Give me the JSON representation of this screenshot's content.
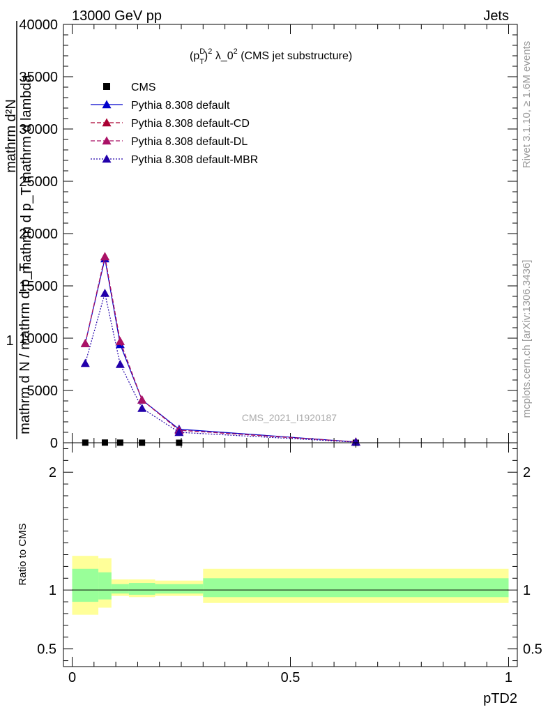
{
  "header": {
    "left": "13000 GeV pp",
    "right": "Jets"
  },
  "side_labels": {
    "rivet": "Rivet 3.1.10, ≥ 1.6M events",
    "mcplots": "mcplots.cern.ch [arXiv:1306.3436]"
  },
  "chart_data": [
    {
      "type": "line",
      "title": "(p_T^D)^2 λ_0^2 (CMS jet substructure)",
      "title_parts": {
        "open": "(p",
        "sup": "D",
        "sub": "T",
        "close": ")",
        "sup2": "2",
        "rest": " λ_0",
        "rest_sup": "2",
        "tail": " (CMS jet substructure)"
      },
      "watermark": "CMS_2021_I1920187",
      "ylabel_top": "mathrm d²N",
      "ylabel_mid": "mathrm d p_T mathrm d lambda",
      "ylabel_left": "1",
      "ylabel_bottom": "mathrm d N / mathrm d p_T",
      "ylim": [
        0,
        40000
      ],
      "xlim": [
        -0.02,
        1.02
      ],
      "yticks": [
        0,
        5000,
        10000,
        15000,
        20000,
        25000,
        30000,
        35000,
        40000
      ],
      "ytick_labels": [
        "0",
        "5000",
        "10000",
        "15000",
        "20000",
        "25000",
        "30000",
        "35000",
        "40000"
      ],
      "legend_position": "top-left",
      "series": [
        {
          "name": "CMS",
          "style": "marker-square",
          "color": "#000000",
          "x": [
            0.03,
            0.075,
            0.11,
            0.16,
            0.245,
            0.65
          ],
          "y": [
            12,
            18,
            10,
            5,
            1.5,
            0.05
          ]
        },
        {
          "name": "Pythia 8.308 default",
          "style": "solid",
          "color": "#0000cc",
          "x": [
            0.03,
            0.075,
            0.11,
            0.16,
            0.245,
            0.65
          ],
          "y": [
            9500,
            17600,
            9400,
            4100,
            1300,
            80
          ]
        },
        {
          "name": "Pythia 8.308 default-CD",
          "style": "dashed",
          "color": "#aa0033",
          "x": [
            0.03,
            0.075,
            0.11,
            0.16,
            0.245,
            0.65
          ],
          "y": [
            9500,
            17800,
            9700,
            4100,
            1200,
            80
          ]
        },
        {
          "name": "Pythia 8.308 default-DL",
          "style": "dashed",
          "color": "#aa1166",
          "x": [
            0.03,
            0.075,
            0.11,
            0.16,
            0.245,
            0.65
          ],
          "y": [
            9500,
            17800,
            9700,
            4100,
            1200,
            80
          ]
        },
        {
          "name": "Pythia 8.308 default-MBR",
          "style": "dotted",
          "color": "#2200aa",
          "x": [
            0.03,
            0.075,
            0.11,
            0.16,
            0.245,
            0.65
          ],
          "y": [
            7600,
            14300,
            7500,
            3300,
            1000,
            60
          ]
        }
      ]
    },
    {
      "type": "area",
      "ylabel": "Ratio to CMS",
      "xlabel": "pTD2",
      "ylim": [
        0.35,
        2.25
      ],
      "xlim": [
        -0.02,
        1.02
      ],
      "yticks": [
        0.5,
        1,
        2
      ],
      "ytick_labels": [
        "0.5",
        "1",
        "2"
      ],
      "xticks": [
        0,
        0.5,
        1
      ],
      "xtick_labels": [
        "0",
        "0.5",
        "1"
      ],
      "bands": {
        "bin_edges": [
          0.0,
          0.06,
          0.09,
          0.13,
          0.19,
          0.3,
          1.0
        ],
        "yellow_low": [
          0.79,
          0.85,
          0.95,
          0.94,
          0.95,
          0.89
        ],
        "yellow_high": [
          1.29,
          1.27,
          1.09,
          1.09,
          1.08,
          1.18
        ],
        "green_low": [
          0.9,
          0.92,
          0.97,
          0.96,
          0.97,
          0.94
        ],
        "green_high": [
          1.18,
          1.15,
          1.05,
          1.06,
          1.05,
          1.1
        ],
        "yellow_color": "#ffff99",
        "green_color": "#99ff99"
      },
      "reference_line": 1
    }
  ]
}
